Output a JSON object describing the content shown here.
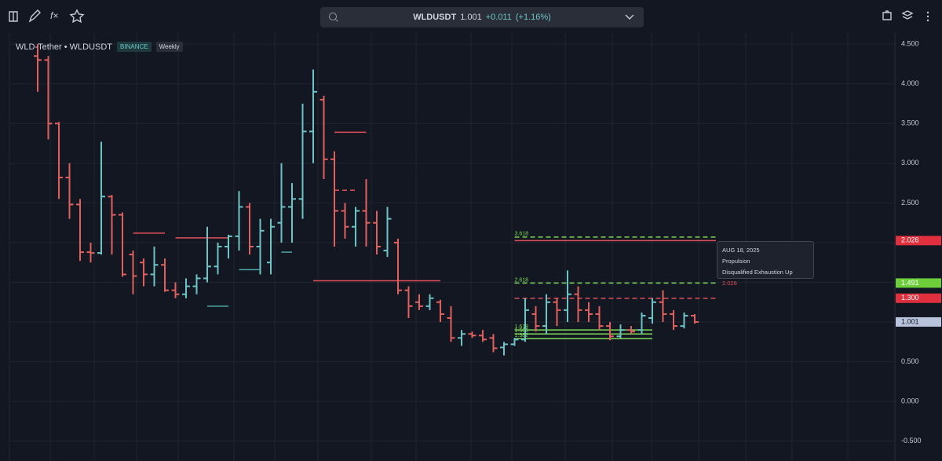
{
  "toolbar": {
    "symbol": "WLDUSDT",
    "price": "1.001",
    "change": "+0.011",
    "change_pct": "(+1.16%)"
  },
  "chart_data": {
    "type": "ohlc",
    "title": "WLD-Tether • WLDUSDT",
    "exchange": "BINANCE",
    "interval": "Weekly",
    "up_color": "#6cc4c6",
    "down_color": "#e0605e",
    "ohlc": [
      [
        4.35,
        4.5,
        3.9,
        4.3
      ],
      [
        4.3,
        4.35,
        3.3,
        3.5
      ],
      [
        3.5,
        3.52,
        2.55,
        2.82
      ],
      [
        2.82,
        3.0,
        2.3,
        2.48
      ],
      [
        2.48,
        2.55,
        1.77,
        1.88
      ],
      [
        1.88,
        2.0,
        1.75,
        1.87
      ],
      [
        1.87,
        3.27,
        1.85,
        2.58
      ],
      [
        2.58,
        2.6,
        1.85,
        2.35
      ],
      [
        2.35,
        2.38,
        1.57,
        1.6
      ],
      [
        1.85,
        1.9,
        1.35,
        1.58
      ],
      [
        1.75,
        1.8,
        1.45,
        1.6
      ],
      [
        1.6,
        1.95,
        1.45,
        1.72
      ],
      [
        1.72,
        1.8,
        1.38,
        1.4
      ],
      [
        1.4,
        1.5,
        1.3,
        1.35
      ],
      [
        1.35,
        1.55,
        1.3,
        1.45
      ],
      [
        1.45,
        1.6,
        1.35,
        1.55
      ],
      [
        1.55,
        2.2,
        1.5,
        1.7
      ],
      [
        1.7,
        2.0,
        1.6,
        1.95
      ],
      [
        1.95,
        2.1,
        1.8,
        2.08
      ],
      [
        2.08,
        2.65,
        1.9,
        2.45
      ],
      [
        2.45,
        2.5,
        1.85,
        1.95
      ],
      [
        1.95,
        2.3,
        1.6,
        2.15
      ],
      [
        1.75,
        2.3,
        1.6,
        2.2
      ],
      [
        2.25,
        3.0,
        2.0,
        2.45
      ],
      [
        2.45,
        2.75,
        2.0,
        2.55
      ],
      [
        2.55,
        3.75,
        2.3,
        3.4
      ],
      [
        3.4,
        4.18,
        3.0,
        3.9
      ],
      [
        3.8,
        3.85,
        2.8,
        3.05
      ],
      [
        3.05,
        3.15,
        1.95,
        2.4
      ],
      [
        2.4,
        2.5,
        2.05,
        2.2
      ],
      [
        2.2,
        2.45,
        1.95,
        2.4
      ],
      [
        2.4,
        2.8,
        1.95,
        2.25
      ],
      [
        2.25,
        2.4,
        1.85,
        1.95
      ],
      [
        1.9,
        2.45,
        1.82,
        2.3
      ],
      [
        2.0,
        2.05,
        1.35,
        1.4
      ],
      [
        1.4,
        1.45,
        1.05,
        1.2
      ],
      [
        1.25,
        1.35,
        1.15,
        1.2
      ],
      [
        1.2,
        1.35,
        1.15,
        1.3
      ],
      [
        1.25,
        1.28,
        1.0,
        1.1
      ],
      [
        1.05,
        1.2,
        0.75,
        0.8
      ],
      [
        0.8,
        0.9,
        0.7,
        0.85
      ],
      [
        0.85,
        0.88,
        0.8,
        0.83
      ],
      [
        0.83,
        0.9,
        0.75,
        0.78
      ],
      [
        0.8,
        0.85,
        0.62,
        0.67
      ],
      [
        0.68,
        0.75,
        0.58,
        0.72
      ],
      [
        0.72,
        0.8,
        0.7,
        0.78
      ],
      [
        0.78,
        1.3,
        0.75,
        1.15
      ],
      [
        1.1,
        1.2,
        0.88,
        0.95
      ],
      [
        0.95,
        1.35,
        0.85,
        1.25
      ],
      [
        1.25,
        1.3,
        0.95,
        1.15
      ],
      [
        1.15,
        1.65,
        1.0,
        1.35
      ],
      [
        1.35,
        1.45,
        1.0,
        1.15
      ],
      [
        1.15,
        1.25,
        1.0,
        1.1
      ],
      [
        1.1,
        1.2,
        0.9,
        0.95
      ],
      [
        0.95,
        1.0,
        0.77,
        0.82
      ],
      [
        0.82,
        0.97,
        0.8,
        0.9
      ],
      [
        0.9,
        0.95,
        0.85,
        0.88
      ],
      [
        0.9,
        1.12,
        0.85,
        1.08
      ],
      [
        1.05,
        1.3,
        0.98,
        1.25
      ],
      [
        1.25,
        1.4,
        1.0,
        1.1
      ],
      [
        1.1,
        1.15,
        0.9,
        0.95
      ],
      [
        0.95,
        1.12,
        0.92,
        1.08
      ],
      [
        1.08,
        1.1,
        0.98,
        1.001
      ]
    ],
    "levels": [
      {
        "value": 2.12,
        "from": 9,
        "to": 12,
        "color": "#e0505a",
        "dash": false
      },
      {
        "value": 2.06,
        "from": 13,
        "to": 18,
        "color": "#e0505a",
        "dash": false
      },
      {
        "value": 3.39,
        "from": 28,
        "to": 31,
        "color": "#e0505a",
        "dash": false
      },
      {
        "value": 2.66,
        "from": 28,
        "to": 30,
        "color": "#e0505a",
        "dash": true
      },
      {
        "value": 1.52,
        "from": 26,
        "to": 38,
        "color": "#e0505a",
        "dash": false
      },
      {
        "value": 1.2,
        "from": 16,
        "to": 18,
        "color": "#4ea8a8",
        "dash": false
      },
      {
        "value": 1.88,
        "from": 23,
        "to": 24,
        "color": "#4ea8a8",
        "dash": false
      },
      {
        "value": 1.66,
        "from": 19,
        "to": 21,
        "color": "#4ea8a8",
        "dash": false
      },
      {
        "value": 2.026,
        "from": 45,
        "to": 64,
        "color": "#e0505a",
        "dash": false
      },
      {
        "value": 2.07,
        "from": 45,
        "to": 64,
        "color": "#7ed957",
        "dash": true,
        "label": "3.618"
      },
      {
        "value": 1.491,
        "from": 45,
        "to": 64,
        "color": "#7ed957",
        "dash": true,
        "label": "2.618"
      },
      {
        "value": 1.3,
        "from": 45,
        "to": 64,
        "color": "#e0505a",
        "dash": true
      },
      {
        "value": 0.9,
        "from": 45,
        "to": 58,
        "color": "#7ed957",
        "dash": false,
        "label": "1.618"
      },
      {
        "value": 0.85,
        "from": 45,
        "to": 58,
        "color": "#7ed957",
        "dash": false,
        "label": "1.500"
      },
      {
        "value": 0.79,
        "from": 45,
        "to": 58,
        "color": "#7ed957",
        "dash": false,
        "label": "1.382"
      }
    ],
    "price_tags": [
      {
        "value": 2.026,
        "label": "2.026",
        "color": "#e0303e"
      },
      {
        "value": 1.491,
        "label": "1.491",
        "color": "#6ccf3a"
      },
      {
        "value": 1.3,
        "label": "1.300",
        "color": "#e0303e"
      },
      {
        "value": 1.001,
        "label": "1.001",
        "color": "#b8c4dc"
      }
    ],
    "tooltip": {
      "date": "AUG 18, 2025",
      "title": "Propulsion",
      "text": "Disqualified Exhaustion Up",
      "value": "2.026"
    },
    "ylim": [
      -0.75,
      4.66
    ],
    "yticks": [
      {
        "value": -0.5,
        "label": "-0.500"
      },
      {
        "value": 0,
        "label": "0.000"
      },
      {
        "value": 0.5,
        "label": "0.500"
      },
      {
        "value": 1,
        "label": "1.000"
      },
      {
        "value": 1.5,
        "label": "1.500"
      },
      {
        "value": 2,
        "label": "2.000"
      },
      {
        "value": 2.5,
        "label": "2.500"
      },
      {
        "value": 3,
        "label": "3.000"
      },
      {
        "value": 3.5,
        "label": "3.500"
      },
      {
        "value": 4,
        "label": "4.000"
      },
      {
        "value": 4.5,
        "label": "4.500"
      }
    ],
    "grid": true
  }
}
